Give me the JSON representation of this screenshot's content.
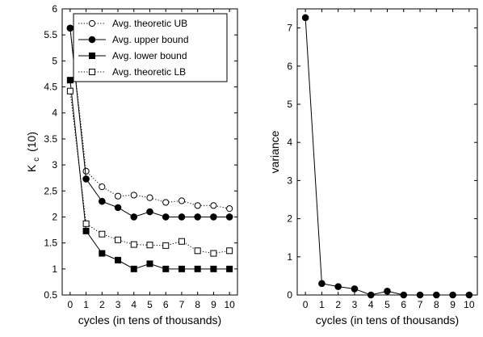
{
  "chart_data": [
    {
      "type": "line",
      "xlabel": "cycles (in tens of thousands)",
      "ylabel_main": "K",
      "ylabel_sub": "c",
      "ylabel_tail": "(10)",
      "xlim": [
        -0.5,
        10.5
      ],
      "ylim": [
        0.5,
        6
      ],
      "xticks": [
        0,
        1,
        2,
        3,
        4,
        5,
        6,
        7,
        8,
        9,
        10
      ],
      "yticks": [
        0.5,
        1,
        1.5,
        2,
        2.5,
        3,
        3.5,
        4,
        4.5,
        5,
        5.5,
        6
      ],
      "grid": false,
      "legend_position": "top-right",
      "series": [
        {
          "name": "Avg. theoretic UB",
          "line": "dotted",
          "marker": "circle-open",
          "x": [
            0,
            1,
            2,
            3,
            4,
            5,
            6,
            7,
            8,
            9,
            10
          ],
          "y": [
            5.63,
            2.88,
            2.58,
            2.4,
            2.42,
            2.37,
            2.28,
            2.31,
            2.22,
            2.22,
            2.16
          ]
        },
        {
          "name": "Avg. upper bound",
          "line": "solid",
          "marker": "circle-filled",
          "x": [
            0,
            1,
            2,
            3,
            4,
            5,
            6,
            7,
            8,
            9,
            10
          ],
          "y": [
            5.63,
            2.73,
            2.3,
            2.18,
            2.0,
            2.1,
            2.0,
            2.0,
            2.0,
            2.0,
            2.0
          ]
        },
        {
          "name": "Avg. lower bound",
          "line": "solid",
          "marker": "square-filled",
          "x": [
            0,
            1,
            2,
            3,
            4,
            5,
            6,
            7,
            8,
            9,
            10
          ],
          "y": [
            4.63,
            1.73,
            1.3,
            1.17,
            1.0,
            1.1,
            1.0,
            1.0,
            1.0,
            1.0,
            1.0
          ]
        },
        {
          "name": "Avg. theoretic LB",
          "line": "dotted",
          "marker": "square-open",
          "x": [
            0,
            1,
            2,
            3,
            4,
            5,
            6,
            7,
            8,
            9,
            10
          ],
          "y": [
            4.42,
            1.87,
            1.67,
            1.56,
            1.47,
            1.46,
            1.45,
            1.53,
            1.35,
            1.3,
            1.35
          ]
        }
      ]
    },
    {
      "type": "line",
      "xlabel": "cycles (in tens of thousands)",
      "ylabel": "variance",
      "xlim": [
        -0.5,
        10.5
      ],
      "ylim": [
        0,
        7.5
      ],
      "xticks": [
        0,
        1,
        2,
        3,
        4,
        5,
        6,
        7,
        8,
        9,
        10
      ],
      "yticks": [
        0,
        1,
        2,
        3,
        4,
        5,
        6,
        7
      ],
      "grid": false,
      "series": [
        {
          "line": "solid",
          "marker": "circle-filled",
          "x": [
            0,
            1,
            2,
            3,
            4,
            5,
            6,
            7,
            8,
            9,
            10
          ],
          "y": [
            7.27,
            0.3,
            0.22,
            0.16,
            0.0,
            0.1,
            0.0,
            0.0,
            0.0,
            0.0,
            0.0
          ]
        }
      ]
    }
  ]
}
